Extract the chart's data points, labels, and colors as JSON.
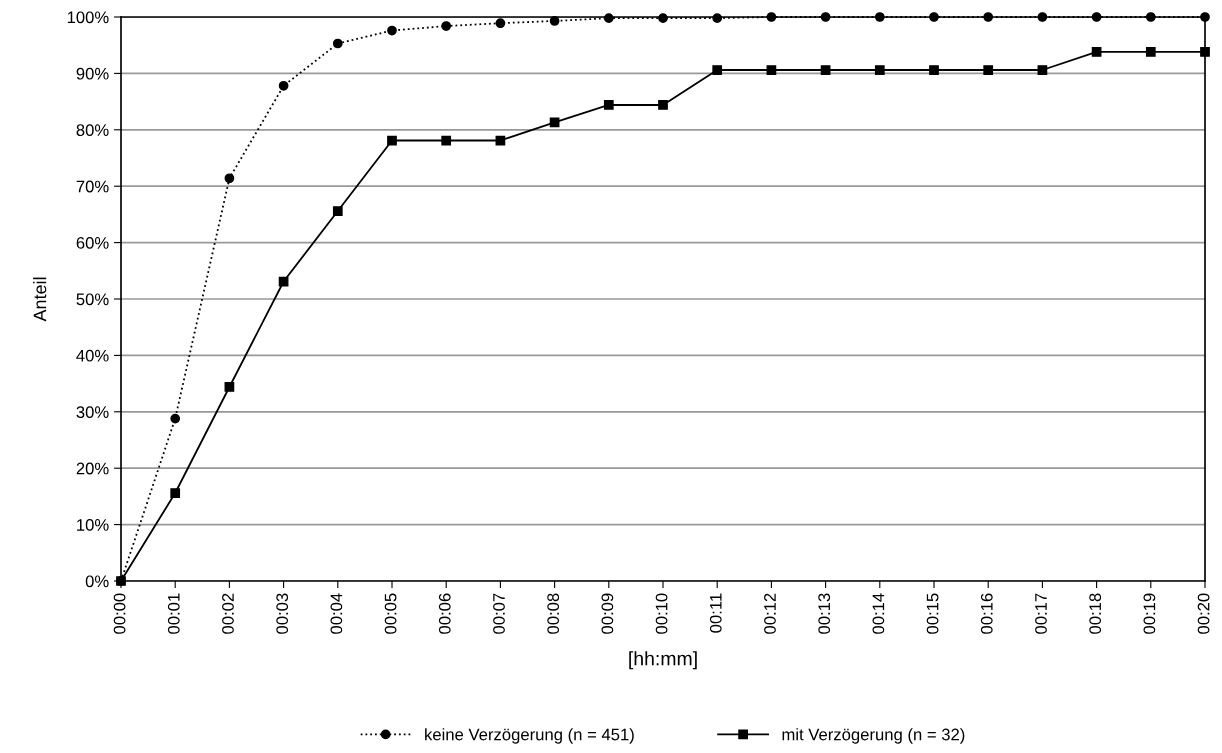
{
  "chart_data": {
    "type": "line",
    "xlabel": "[hh:mm]",
    "ylabel": "Anteil",
    "categories": [
      "00:00",
      "00:01",
      "00:02",
      "00:03",
      "00:04",
      "00:05",
      "00:06",
      "00:07",
      "00:08",
      "00:09",
      "00:10",
      "00:11",
      "00:12",
      "00:13",
      "00:14",
      "00:15",
      "00:16",
      "00:17",
      "00:18",
      "00:19",
      "00:20"
    ],
    "series": [
      {
        "name": "keine Verzögerung (n = 451)",
        "color": "#000000",
        "marker": "circle",
        "line_style": "dotted",
        "values": [
          0,
          28.8,
          71.4,
          87.8,
          95.3,
          97.6,
          98.4,
          98.9,
          99.3,
          99.8,
          99.8,
          99.8,
          100,
          100,
          100,
          100,
          100,
          100,
          100,
          100,
          100
        ]
      },
      {
        "name": "mit Verzögerung (n = 32)",
        "color": "#000000",
        "marker": "square",
        "line_style": "solid",
        "values": [
          0,
          15.6,
          34.4,
          53.1,
          65.6,
          78.1,
          78.1,
          78.1,
          81.3,
          84.4,
          84.4,
          90.6,
          90.6,
          90.6,
          90.6,
          90.6,
          90.6,
          90.6,
          93.8,
          93.8,
          93.8
        ]
      }
    ],
    "ylim": [
      0,
      100
    ],
    "yticks": [
      {
        "value": 0,
        "label": "0%"
      },
      {
        "value": 10,
        "label": "10%"
      },
      {
        "value": 20,
        "label": "20%"
      },
      {
        "value": 30,
        "label": "30%"
      },
      {
        "value": 40,
        "label": "40%"
      },
      {
        "value": 50,
        "label": "50%"
      },
      {
        "value": 60,
        "label": "60%"
      },
      {
        "value": 70,
        "label": "70%"
      },
      {
        "value": 80,
        "label": "80%"
      },
      {
        "value": 90,
        "label": "90%"
      },
      {
        "value": 100,
        "label": "100%"
      }
    ],
    "grid": "y",
    "legend": "bottom"
  }
}
